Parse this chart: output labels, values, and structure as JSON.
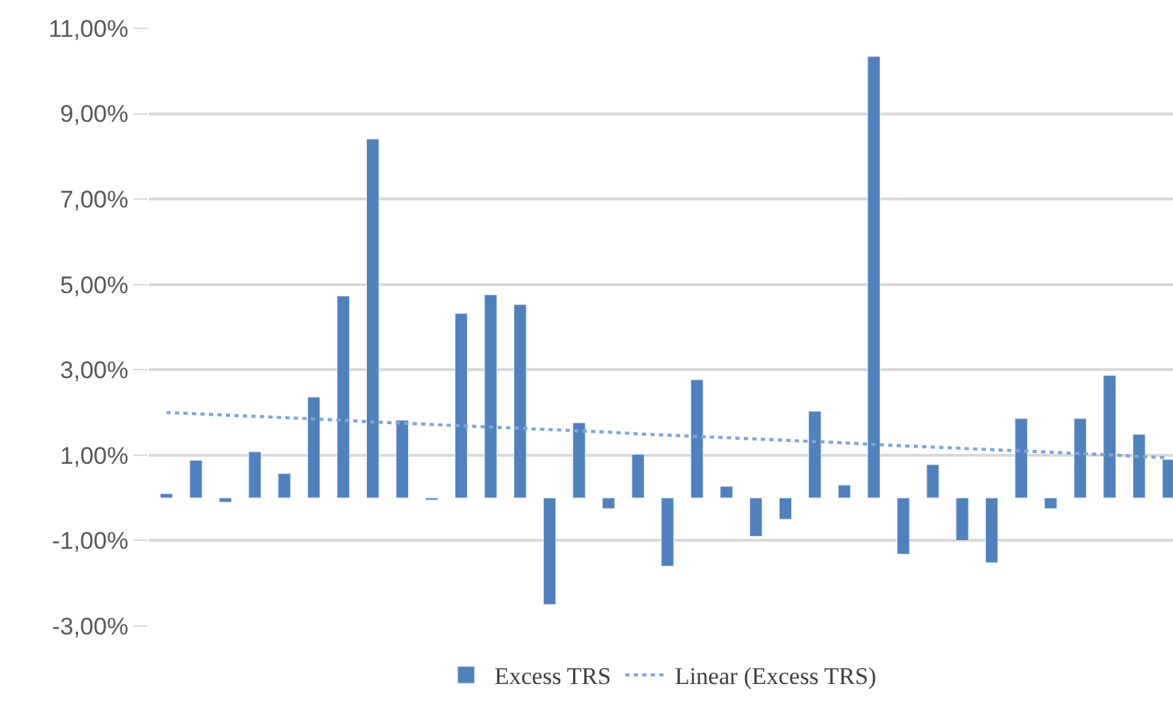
{
  "chart_data": {
    "type": "bar",
    "categories": [
      null,
      null,
      null,
      null,
      null,
      null,
      null,
      null,
      null,
      null,
      null,
      null,
      null,
      null,
      null,
      null,
      null,
      null,
      null,
      null,
      null,
      null,
      null,
      null,
      null,
      null,
      null,
      null,
      null,
      null,
      null,
      null,
      null,
      null,
      null
    ],
    "series": [
      {
        "name": "Excess TRS",
        "color": "#4f81bd",
        "values": [
          0.1,
          0.88,
          -0.1,
          1.08,
          0.57,
          2.36,
          4.73,
          8.41,
          1.82,
          -0.05,
          4.32,
          4.76,
          4.53,
          -2.5,
          1.76,
          -0.25,
          1.02,
          -1.6,
          2.77,
          0.27,
          -0.9,
          -0.5,
          2.03,
          0.3,
          10.34,
          -1.32,
          0.78,
          -1.0,
          -1.52,
          1.86,
          -0.25,
          1.86,
          2.87,
          1.49,
          0.9
        ]
      },
      {
        "name": "Linear (Excess TRS)",
        "type": "line",
        "color": "#7ea6d8",
        "line_style": "dotted",
        "values": [
          2.0,
          1.97,
          1.94,
          1.91,
          1.88,
          1.85,
          1.82,
          1.78,
          1.75,
          1.72,
          1.69,
          1.66,
          1.63,
          1.6,
          1.57,
          1.54,
          1.5,
          1.47,
          1.44,
          1.41,
          1.38,
          1.35,
          1.32,
          1.29,
          1.25,
          1.22,
          1.19,
          1.16,
          1.13,
          1.1,
          1.07,
          1.04,
          1.01,
          0.97,
          0.94
        ]
      }
    ],
    "ylim": [
      -3,
      11
    ],
    "yticks": [
      {
        "value": -3,
        "label": "-3,00%"
      },
      {
        "value": -1,
        "label": "-1,00%"
      },
      {
        "value": 1,
        "label": "1,00%"
      },
      {
        "value": 3,
        "label": "3,00%"
      },
      {
        "value": 5,
        "label": "5,00%"
      },
      {
        "value": 7,
        "label": "7,00%"
      },
      {
        "value": 9,
        "label": "9,00%"
      },
      {
        "value": 11,
        "label": "11,00%"
      }
    ],
    "grid": "y",
    "legend": "bottom",
    "tick_labels": "y",
    "marker": "none"
  }
}
